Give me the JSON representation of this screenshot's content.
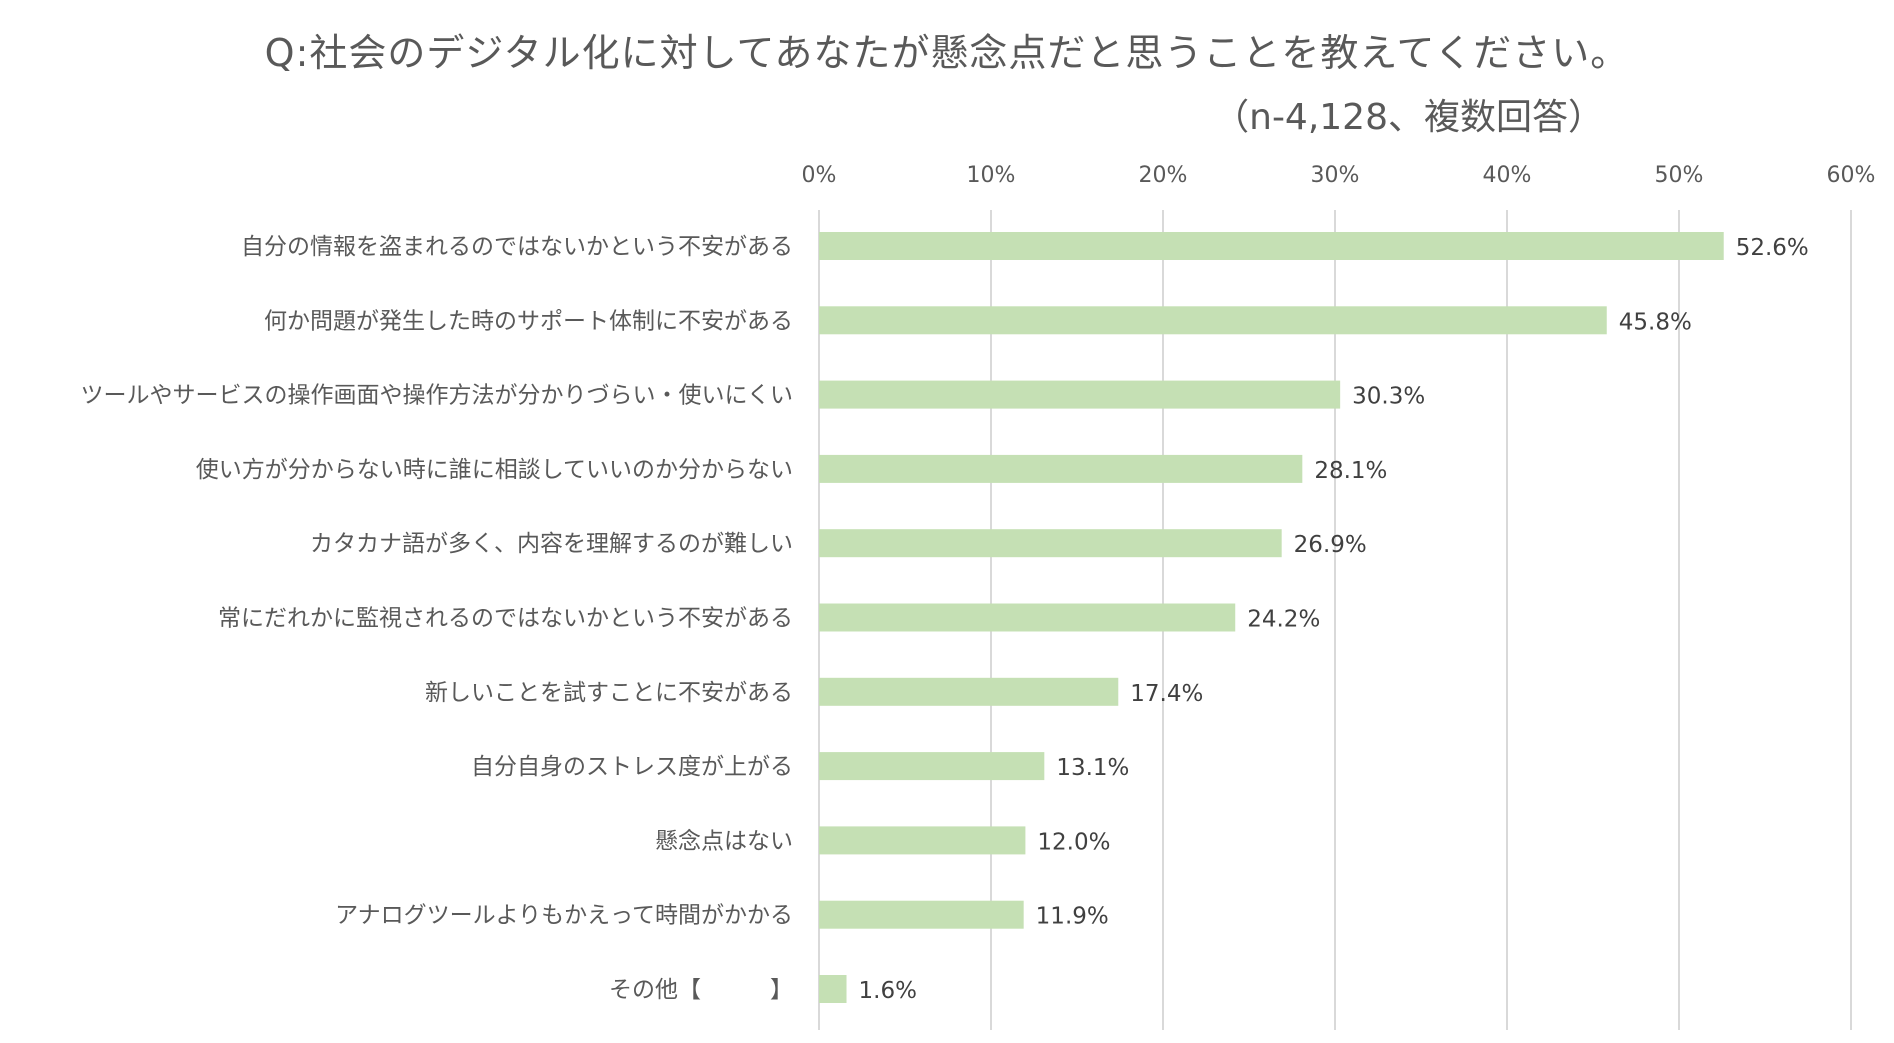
{
  "chart_data": {
    "type": "bar",
    "orientation": "horizontal",
    "title": "Q:社会のデジタル化に対してあなたが懸念点だと思うことを教えてください。",
    "subtitle": "（n-4,128、複数回答）",
    "xlim": [
      0,
      60
    ],
    "xticks": [
      "0%",
      "10%",
      "20%",
      "30%",
      "40%",
      "50%",
      "60%"
    ],
    "xtick_values": [
      0,
      10,
      20,
      30,
      40,
      50,
      60
    ],
    "grid": true,
    "bar_color": "#c5e0b4",
    "categories": [
      "自分の情報を盗まれるのではないかという不安がある",
      "何か問題が発生した時のサポート体制に不安がある",
      "ツールやサービスの操作画面や操作方法が分かりづらい・使いにくい",
      "使い方が分からない時に誰に相談していいのか分からない",
      "カタカナ語が多く、内容を理解するのが難しい",
      "常にだれかに監視されるのではないかという不安がある",
      "新しいことを試すことに不安がある",
      "自分自身のストレス度が上がる",
      "懸念点はない",
      "アナログツールよりもかえって時間がかかる",
      "その他【　　　】"
    ],
    "values": [
      52.6,
      45.8,
      30.3,
      28.1,
      26.9,
      24.2,
      17.4,
      13.1,
      12.0,
      11.9,
      1.6
    ],
    "data_labels": [
      "52.6%",
      "45.8%",
      "30.3%",
      "28.1%",
      "26.9%",
      "24.2%",
      "17.4%",
      "13.1%",
      "12.0%",
      "11.9%",
      "1.6%"
    ]
  }
}
